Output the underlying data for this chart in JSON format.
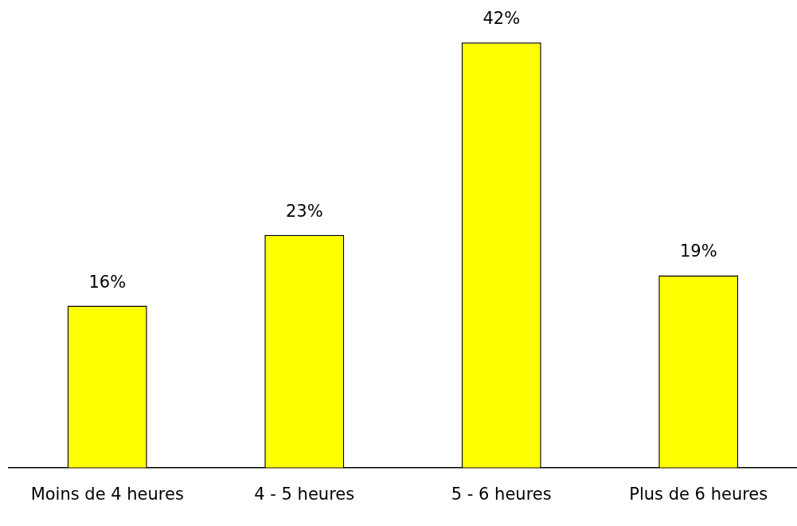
{
  "chart_data": {
    "type": "bar",
    "categories": [
      "Moins de 4 heures",
      "4 - 5 heures",
      "5 - 6 heures",
      "Plus de 6 heures"
    ],
    "values": [
      16,
      23,
      42,
      19
    ],
    "value_labels": [
      "16%",
      "23%",
      "42%",
      "19%"
    ],
    "color": "#ffff00",
    "grid": false,
    "legend": false
  }
}
